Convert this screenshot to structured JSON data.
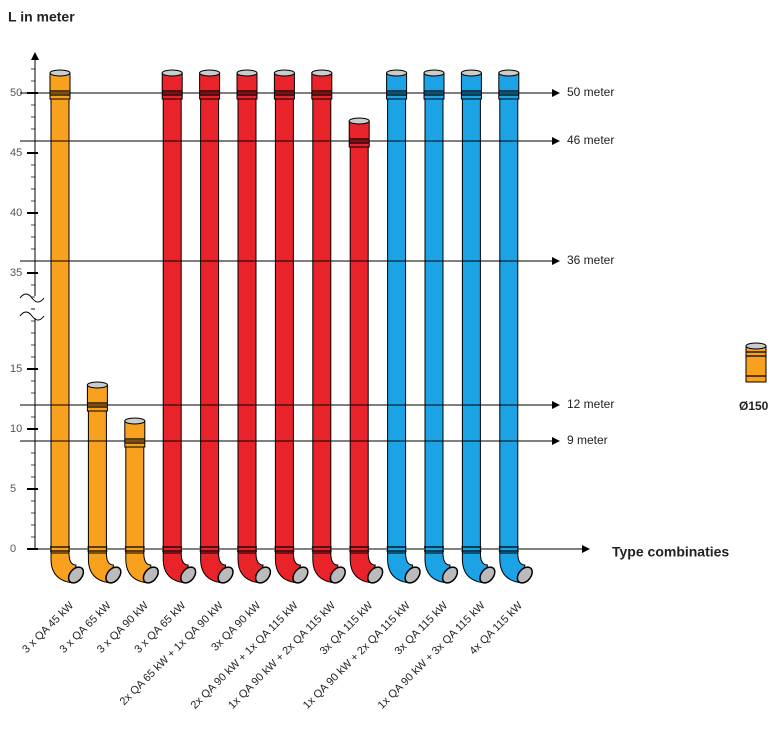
{
  "chart_data": {
    "type": "pipe",
    "y_label": "L in meter",
    "x_label": "Type combinaties",
    "categories": [
      "3 x QA 45 kW",
      "3 x QA 65 kW",
      "3 x QA 90 kW",
      "3 x QA 65 kW",
      "2x QA 65 kW + 1x QA 90 kW",
      "3x QA 90 kW",
      "2x QA 90 kW + 1x QA 115 kW",
      "1x QA 90 kW + 2x QA 115 kW",
      "3x QA 115 kW",
      "1x QA 90 kW + 2x QA 115 kW",
      "3x QA 115 kW",
      "1x QA 90 kW + 3x QA 115 kW",
      "4x QA 115 kW"
    ],
    "values": [
      50,
      12,
      9,
      50,
      50,
      50,
      50,
      50,
      46,
      50,
      50,
      50,
      50
    ],
    "colors": [
      "#f7a11f",
      "#f7a11f",
      "#f7a11f",
      "#e8242a",
      "#e8242a",
      "#e8242a",
      "#e8242a",
      "#e8242a",
      "#e8242a",
      "#1ca3e6",
      "#1ca3e6",
      "#1ca3e6",
      "#1ca3e6"
    ],
    "ylim": [
      0,
      52
    ],
    "y_break": [
      20,
      32
    ],
    "yticks": [
      0,
      5,
      10,
      15,
      35,
      40,
      45,
      50
    ],
    "reference_lines": [
      {
        "value": 50,
        "label": "50 meter"
      },
      {
        "value": 46,
        "label": "46 meter"
      },
      {
        "value": 36,
        "label": "36 meter"
      },
      {
        "value": 12,
        "label": "12 meter"
      },
      {
        "value": 9,
        "label": "9 meter"
      }
    ],
    "legend": {
      "label": "Ø150",
      "color": "#f7a11f"
    }
  }
}
